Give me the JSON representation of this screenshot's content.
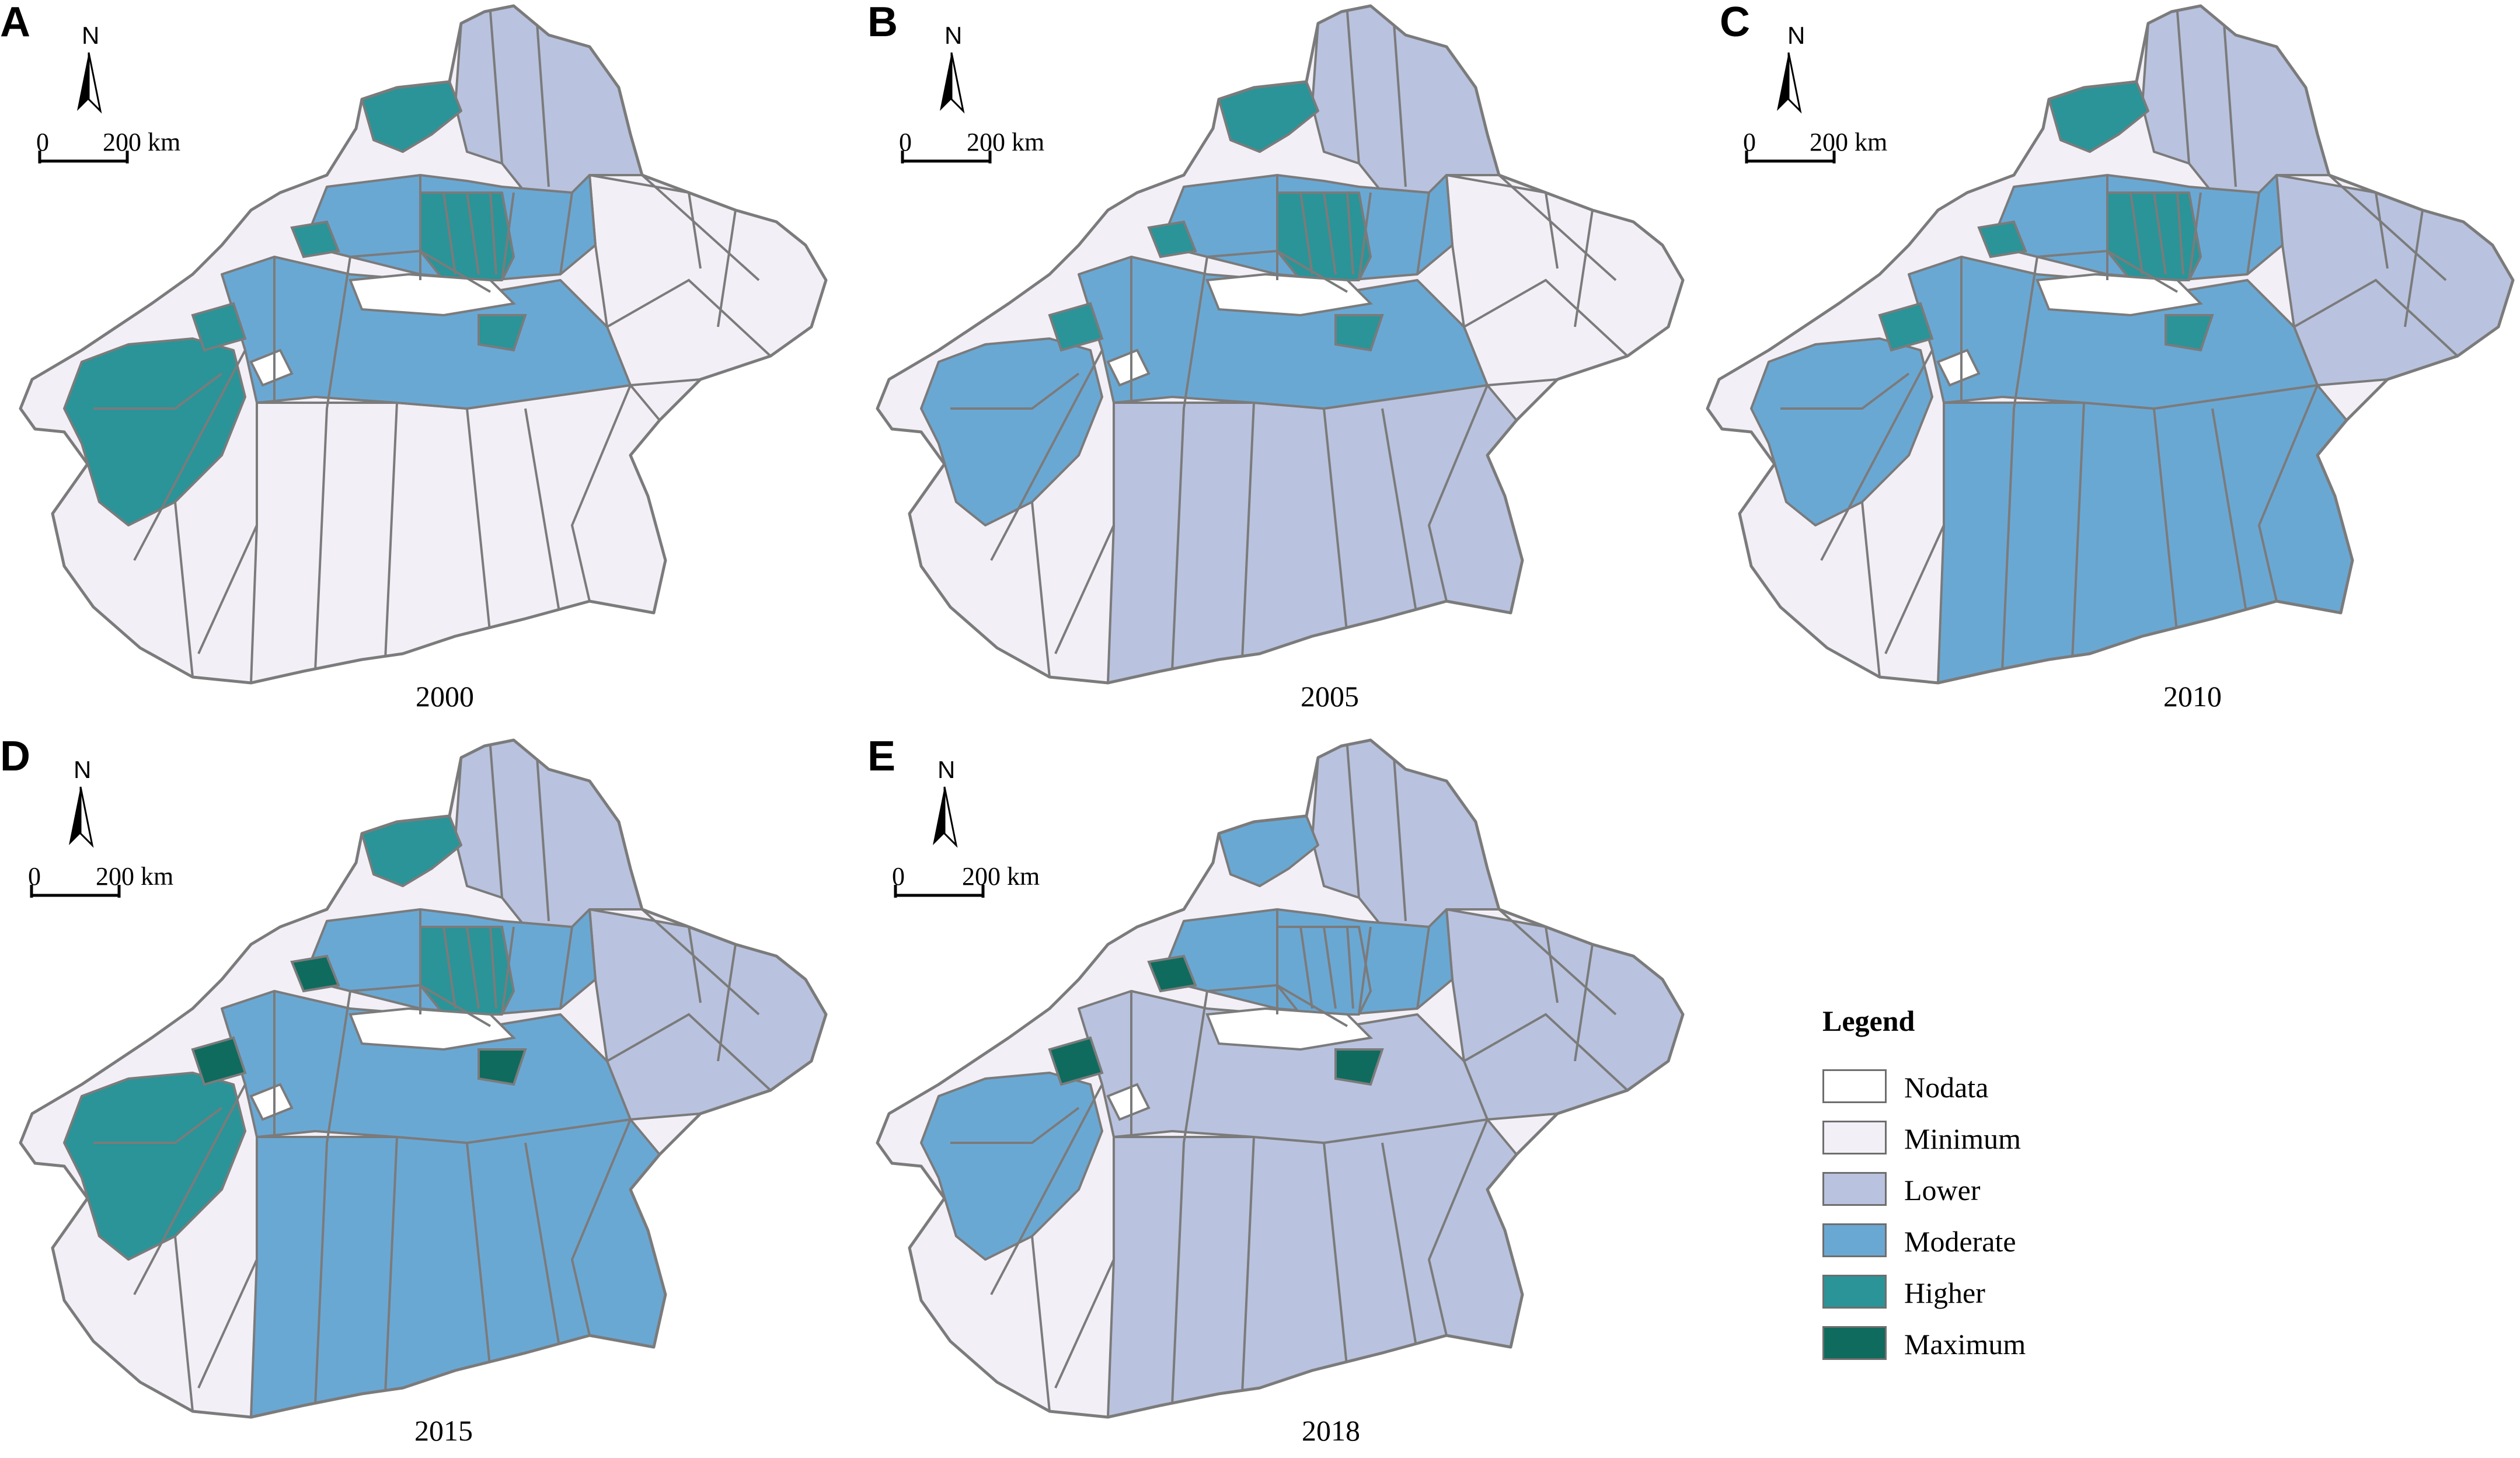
{
  "colors": {
    "nodata": "#ffffff",
    "minimum": "#f3eff7",
    "lower": "#b9c3df",
    "moderate": "#6aa8d4",
    "higher": "#2a9498",
    "maximum": "#0f6b5e",
    "boundary": "#7b7b7b"
  },
  "scale_bar": {
    "zero": "0",
    "distance": "200 km"
  },
  "north_label": "N",
  "panels": [
    {
      "letter": "A",
      "year": "2000"
    },
    {
      "letter": "B",
      "year": "2005"
    },
    {
      "letter": "C",
      "year": "2010"
    },
    {
      "letter": "D",
      "year": "2015"
    },
    {
      "letter": "E",
      "year": "2018"
    }
  ],
  "legend": {
    "title": "Legend",
    "items": [
      {
        "label": "Nodata",
        "class": "nodata"
      },
      {
        "label": "Minimum",
        "class": "minimum"
      },
      {
        "label": "Lower",
        "class": "lower"
      },
      {
        "label": "Moderate",
        "class": "moderate"
      },
      {
        "label": "Higher",
        "class": "higher"
      },
      {
        "label": "Maximum",
        "class": "maximum"
      }
    ]
  },
  "map_regions": {
    "A": {
      "top_left": "higher",
      "north_strip": "lower",
      "north_central": "moderate",
      "central_belt": "moderate",
      "central_core": "higher",
      "southwest": "higher",
      "east_band": "minimum",
      "south_band": "minimum",
      "small_patches": "higher"
    },
    "B": {
      "top_left": "higher",
      "north_strip": "lower",
      "north_central": "moderate",
      "central_belt": "moderate",
      "central_core": "higher",
      "southwest": "moderate",
      "east_band": "minimum",
      "south_band": "lower",
      "small_patches": "higher"
    },
    "C": {
      "top_left": "higher",
      "north_strip": "lower",
      "north_central": "moderate",
      "central_belt": "moderate",
      "central_core": "higher",
      "southwest": "moderate",
      "east_band": "lower",
      "south_band": "moderate",
      "small_patches": "higher"
    },
    "D": {
      "top_left": "higher",
      "north_strip": "lower",
      "north_central": "moderate",
      "central_belt": "moderate",
      "central_core": "higher",
      "southwest": "higher",
      "east_band": "lower",
      "south_band": "moderate",
      "small_patches": "maximum"
    },
    "E": {
      "top_left": "moderate",
      "north_strip": "lower",
      "north_central": "moderate",
      "central_belt": "lower",
      "central_core": "moderate",
      "southwest": "moderate",
      "east_band": "lower",
      "south_band": "lower",
      "small_patches": "maximum"
    }
  }
}
